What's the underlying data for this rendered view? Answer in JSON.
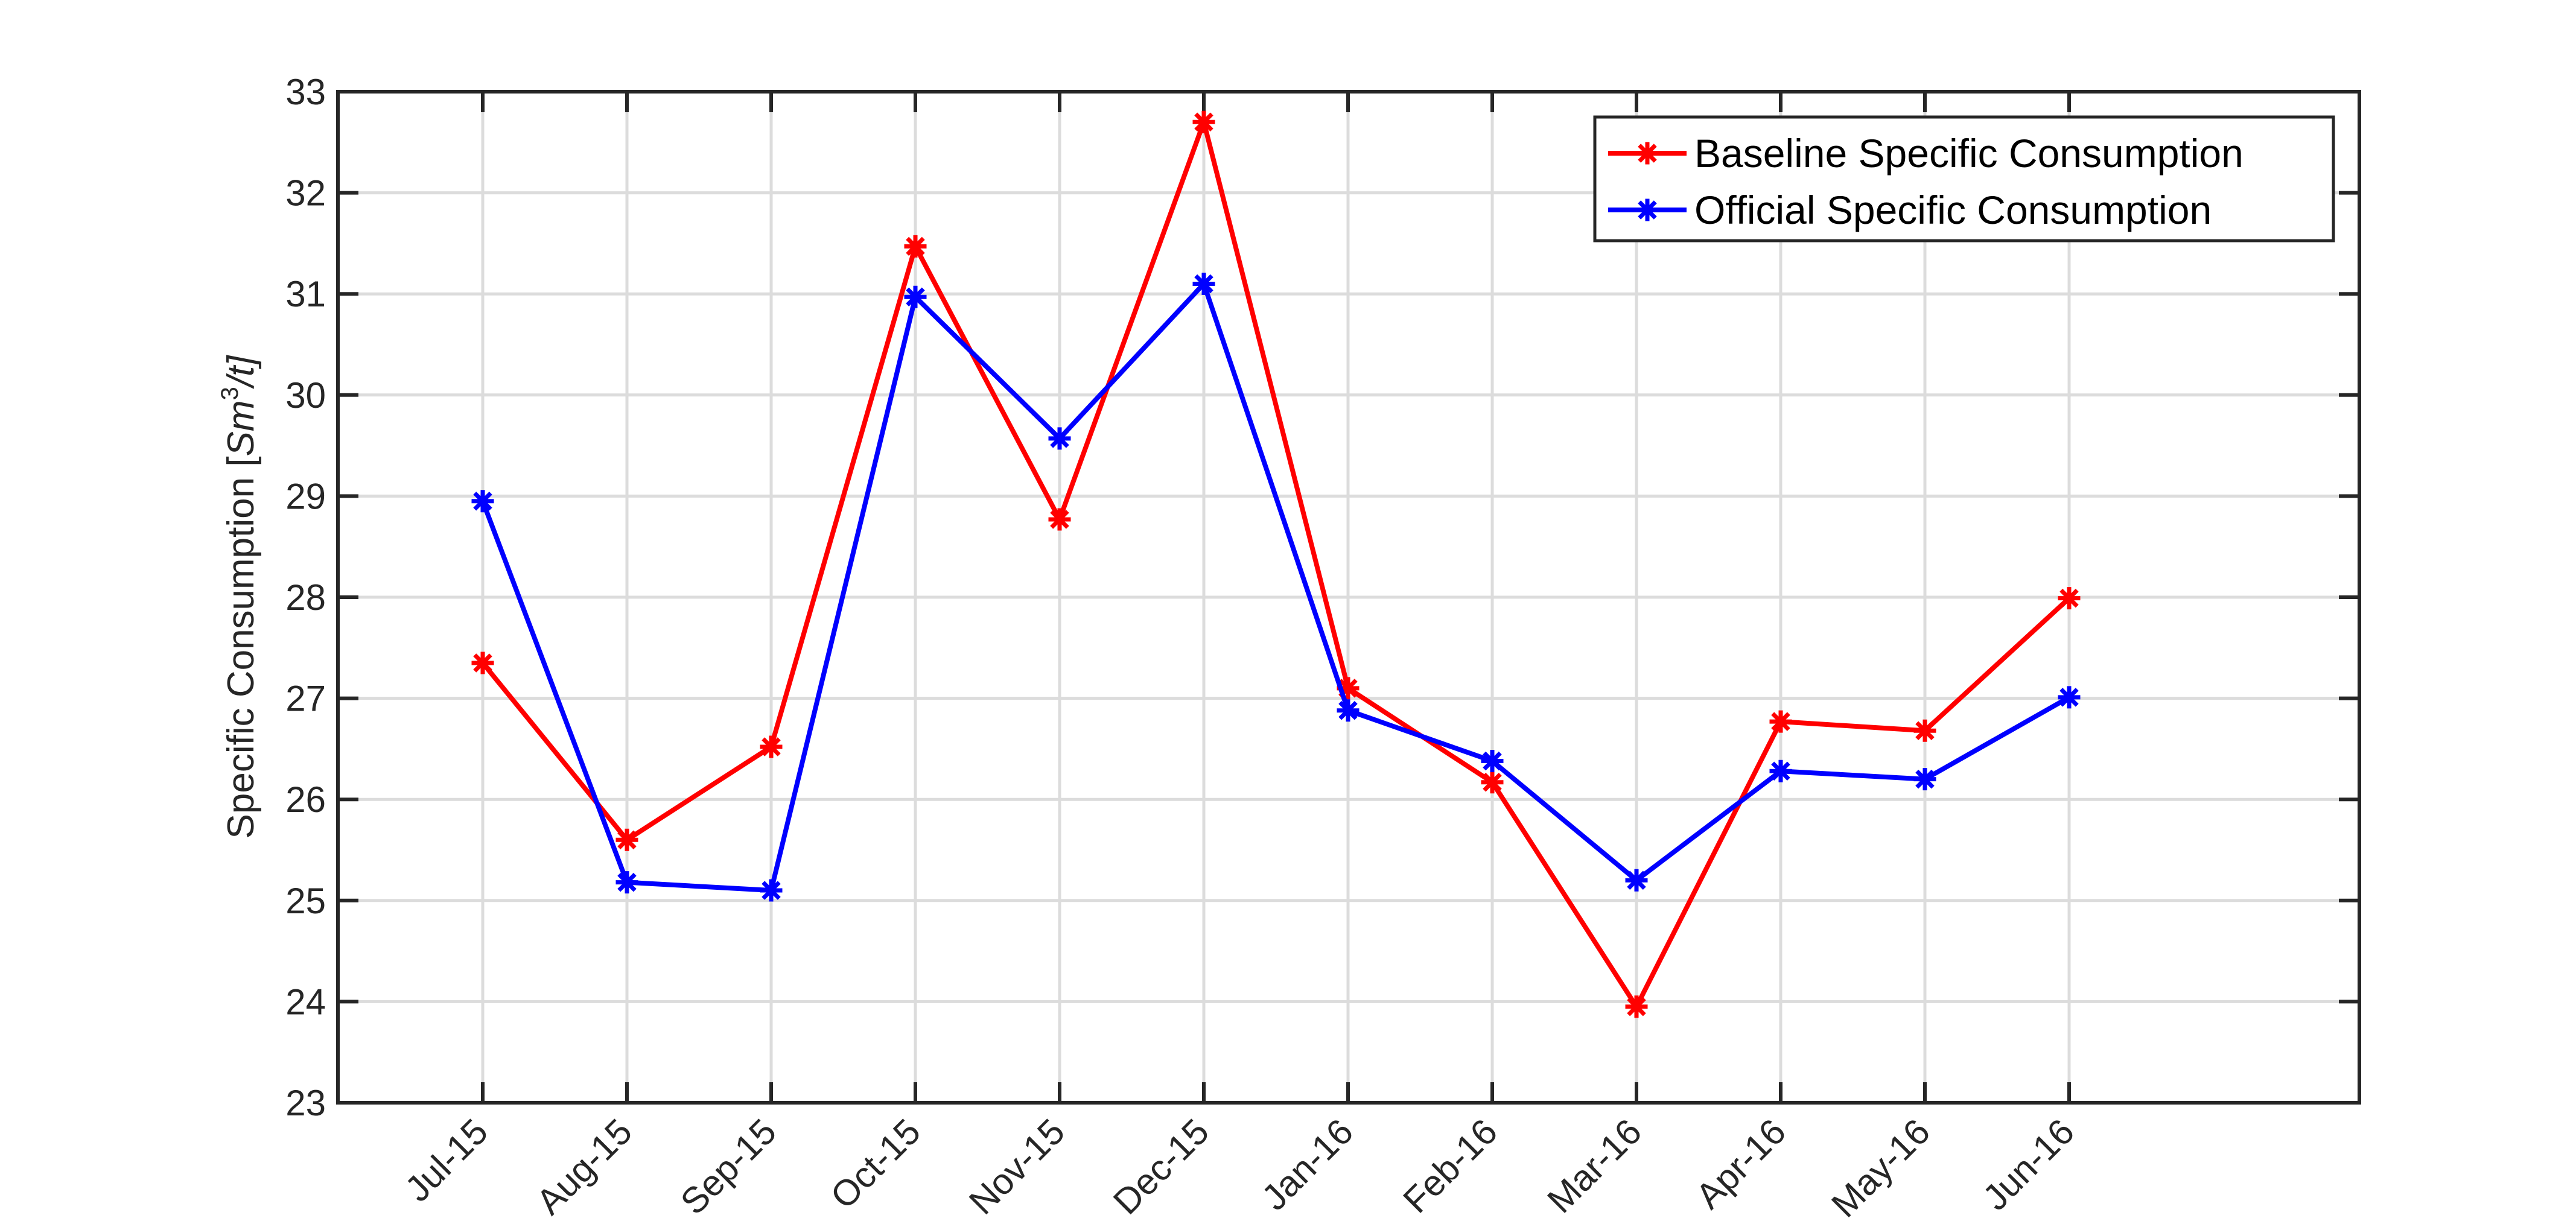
{
  "chart_data": {
    "type": "line",
    "categories": [
      "Jul-15",
      "Aug-15",
      "Sep-15",
      "Oct-15",
      "Nov-15",
      "Dec-15",
      "Jan-16",
      "Feb-16",
      "Mar-16",
      "Apr-16",
      "May-16",
      "Jun-16"
    ],
    "series": [
      {
        "name": "Baseline Specific Consumption",
        "color": "#ff0000",
        "values": [
          27.35,
          25.6,
          26.52,
          31.47,
          28.77,
          32.7,
          27.1,
          26.17,
          23.95,
          26.77,
          26.68,
          27.99
        ]
      },
      {
        "name": "Official Specific Consumption",
        "color": "#0000ff",
        "values": [
          28.95,
          25.18,
          25.1,
          30.97,
          29.57,
          31.1,
          26.88,
          26.38,
          25.2,
          26.28,
          26.2,
          27.01
        ]
      }
    ],
    "ylabel_prefix": "Specific Consumption [",
    "ylabel_unit_base": "Sm",
    "ylabel_unit_sup": "3",
    "ylabel_unit_tail": "/t]",
    "ylim": [
      23,
      33
    ],
    "yticks": [
      "23",
      "24",
      "25",
      "26",
      "27",
      "28",
      "29",
      "30",
      "31",
      "32",
      "33"
    ],
    "grid": true,
    "legend_position": "top-right",
    "marker": "asterisk"
  }
}
